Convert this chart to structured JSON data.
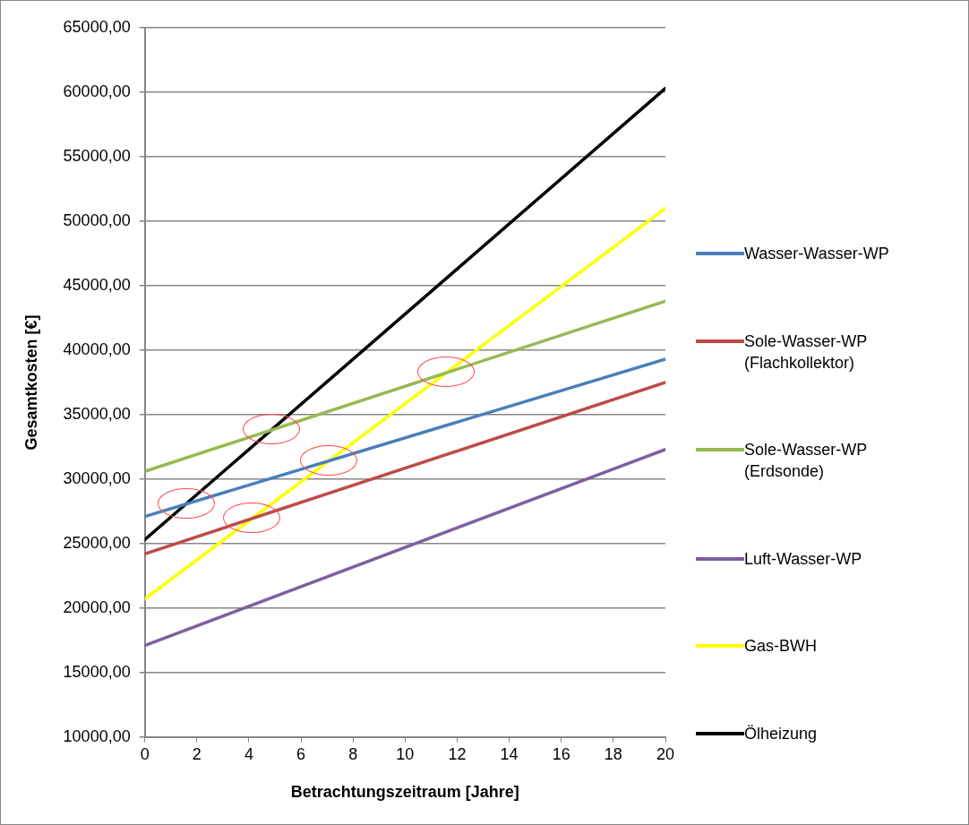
{
  "chart_data": {
    "type": "line",
    "xlabel": "Betrachtungszeitraum [Jahre]",
    "ylabel": "Gesamtkosten [€]",
    "x": [
      0,
      20
    ],
    "series": [
      {
        "name": "Wasser-Wasser-WP",
        "color": "#4a7ebb",
        "values": [
          27100,
          39300
        ]
      },
      {
        "name": "Sole-Wasser-WP (Flachkollektor)",
        "color": "#be4b48",
        "values": [
          24200,
          37500
        ]
      },
      {
        "name": "Sole-Wasser-WP (Erdsonde)",
        "color": "#98b954",
        "values": [
          30600,
          43800
        ]
      },
      {
        "name": "Luft-Wasser-WP",
        "color": "#7d60a0",
        "values": [
          17100,
          32300
        ]
      },
      {
        "name": "Gas-BWH",
        "color": "#ffff00",
        "values": [
          20700,
          51000
        ]
      },
      {
        "name": "Ölheizung",
        "color": "#000000",
        "values": [
          25300,
          60300
        ]
      }
    ],
    "xlim": [
      0,
      20
    ],
    "xticks": [
      0,
      2,
      4,
      6,
      8,
      10,
      12,
      14,
      16,
      18,
      20
    ],
    "ylim": [
      10000,
      65000
    ],
    "yticks": [
      {
        "value": 10000,
        "label": "10000,00"
      },
      {
        "value": 15000,
        "label": "15000,00"
      },
      {
        "value": 20000,
        "label": "20000,00"
      },
      {
        "value": 25000,
        "label": "25000,00"
      },
      {
        "value": 30000,
        "label": "30000,00"
      },
      {
        "value": 35000,
        "label": "35000,00"
      },
      {
        "value": 40000,
        "label": "40000,00"
      },
      {
        "value": 45000,
        "label": "45000,00"
      },
      {
        "value": 50000,
        "label": "50000,00"
      },
      {
        "value": 55000,
        "label": "55000,00"
      },
      {
        "value": 60000,
        "label": "60000,00"
      },
      {
        "value": 65000,
        "label": "65000,00"
      }
    ],
    "grid": "y",
    "legend": "right",
    "marker": "none",
    "line_style": "solid"
  }
}
